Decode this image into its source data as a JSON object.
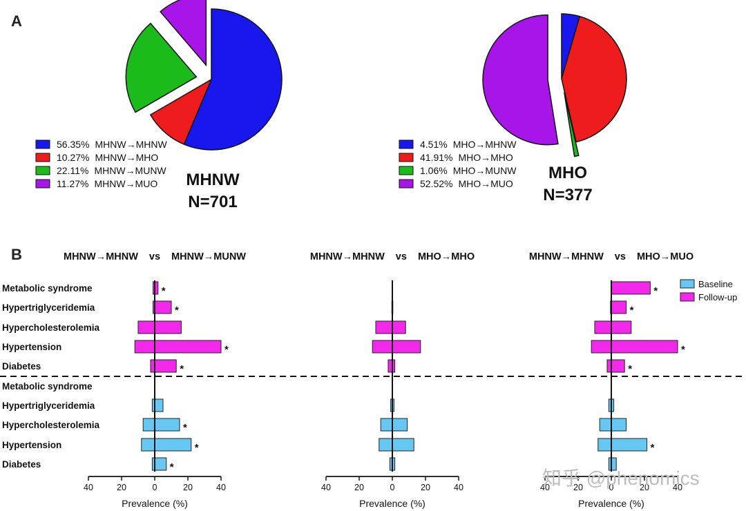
{
  "panel_labels": {
    "a": "A",
    "b": "B"
  },
  "watermark": "知乎 @phenomics",
  "colors": {
    "blue": "#1818ee",
    "red": "#ee1c1c",
    "green": "#1cbb1c",
    "purple": "#a815e8",
    "baseline": "#66c8f2",
    "followup": "#f228ea"
  },
  "chart_data": [
    {
      "type": "pie",
      "group": "MHNW",
      "n_label": "N=701",
      "slices": [
        {
          "label": "MHNW→MHNW",
          "value": 56.35,
          "value_label": "56.35%",
          "color": "#1818ee",
          "exploded": false
        },
        {
          "label": "MHNW→MHO",
          "value": 10.27,
          "value_label": "10.27%",
          "color": "#ee1c1c",
          "exploded": false
        },
        {
          "label": "MHNW→MUNW",
          "value": 22.11,
          "value_label": "22.11%",
          "color": "#1cbb1c",
          "exploded": true
        },
        {
          "label": "MHNW→MUO",
          "value": 11.27,
          "value_label": "11.27%",
          "color": "#a815e8",
          "exploded": true
        }
      ]
    },
    {
      "type": "pie",
      "group": "MHO",
      "n_label": "N=377",
      "slices": [
        {
          "label": "MHO→MHNW",
          "value": 4.51,
          "value_label": "4.51%",
          "color": "#1818ee",
          "exploded": false
        },
        {
          "label": "MHO→MHO",
          "value": 41.91,
          "value_label": "41.91%",
          "color": "#ee1c1c",
          "exploded": false
        },
        {
          "label": "MHO→MUNW",
          "value": 1.06,
          "value_label": "1.06%",
          "color": "#1cbb1c",
          "exploded": true
        },
        {
          "label": "MHO→MUO",
          "value": 52.52,
          "value_label": "52.52%",
          "color": "#a815e8",
          "exploded": true
        }
      ]
    },
    {
      "type": "bar",
      "orientation": "horizontal-back-to-back",
      "shared": {
        "categories": [
          "Metabolic syndrome",
          "Hypertriglyceridemia",
          "Hypercholesterolemia",
          "Hypertension",
          "Diabetes"
        ],
        "xlabel": "Prevalence (%)",
        "xlim": [
          -40,
          40
        ],
        "xticks": [
          -40,
          -20,
          0,
          20,
          40
        ],
        "xtick_labels": [
          "40",
          "20",
          "0",
          "20",
          "40"
        ],
        "legend": {
          "placement": "top-right",
          "entries": [
            {
              "name": "Baseline",
              "color": "#66c8f2"
            },
            {
              "name": "Follow-up",
              "color": "#f228ea"
            }
          ]
        }
      },
      "panels": [
        {
          "title_left": "MHNW→MHNW",
          "vs": "vs",
          "title_right": "MHNW→MUNW",
          "followup": {
            "left": [
              1,
              1,
              10,
              12,
              2.5
            ],
            "right": [
              2,
              10,
              16,
              40,
              13
            ],
            "significant": [
              true,
              true,
              false,
              true,
              true
            ]
          },
          "baseline": {
            "left": [
              0,
              1.5,
              7,
              8,
              1.5
            ],
            "right": [
              0,
              5,
              15,
              22,
              7
            ],
            "significant": [
              false,
              false,
              true,
              true,
              true
            ]
          }
        },
        {
          "title_left": "MHNW→MHNW",
          "vs": "vs",
          "title_right": "MHO→MHO",
          "followup": {
            "left": [
              0,
              0.3,
              10,
              12,
              2.5
            ],
            "right": [
              0,
              0.3,
              8,
              17,
              1.5
            ],
            "significant": [
              false,
              false,
              false,
              false,
              false
            ]
          },
          "baseline": {
            "left": [
              0,
              1,
              7,
              8,
              1.5
            ],
            "right": [
              0,
              1,
              9,
              13,
              1.5
            ],
            "significant": [
              false,
              false,
              false,
              false,
              false
            ]
          }
        },
        {
          "title_left": "MHNW→MHNW",
          "vs": "vs",
          "title_right": "MHO→MUO",
          "followup": {
            "left": [
              0,
              0.5,
              10,
              12,
              2.5
            ],
            "right": [
              23.5,
              9,
              12,
              40,
              8
            ],
            "significant": [
              true,
              true,
              false,
              true,
              true
            ]
          },
          "baseline": {
            "left": [
              0,
              1.5,
              7,
              8,
              1.5
            ],
            "right": [
              0,
              1.5,
              9,
              21.5,
              3
            ],
            "significant": [
              false,
              false,
              false,
              true,
              false
            ]
          }
        }
      ]
    }
  ]
}
